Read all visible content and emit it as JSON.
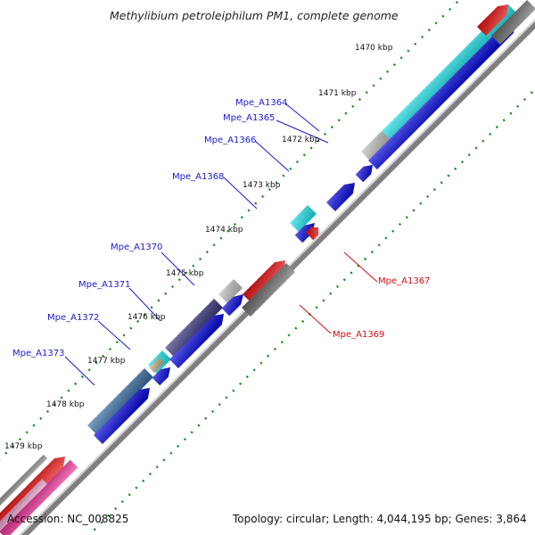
{
  "title": "Methylibium petroleiphilum PM1, complete genome",
  "footer": {
    "accession": "Accession: NC_008825",
    "stats": "Topology: circular; Length: 4,044,195 bp; Genes: 3,864"
  },
  "ticks": [
    "1470 kbp",
    "1471 kbp",
    "1472 kbp",
    "1473 kbp",
    "1474 kbp",
    "1475 kbp",
    "1476 kbp",
    "1477 kbp",
    "1478 kbp",
    "1479 kbp"
  ],
  "genes_forward": [
    {
      "id": "Mpe_A1364"
    },
    {
      "id": "Mpe_A1365"
    },
    {
      "id": "Mpe_A1366"
    },
    {
      "id": "Mpe_A1368"
    },
    {
      "id": "Mpe_A1370"
    },
    {
      "id": "Mpe_A1371"
    },
    {
      "id": "Mpe_A1372"
    },
    {
      "id": "Mpe_A1373"
    }
  ],
  "genes_reverse": [
    {
      "id": "Mpe_A1367"
    },
    {
      "id": "Mpe_A1369"
    }
  ],
  "colors": {
    "cds_blue": "#0000dd",
    "cog_cyan": "#22e6ee",
    "cog_grey": "#c4c4c4",
    "cog_navy": "#3c3880",
    "cog_steel": "#3b72a8",
    "cog_tan": "#c2b28a",
    "red": "#ee1111",
    "pink": "#ee3399",
    "backbone": "#808080",
    "tick_green": "#118811",
    "label_blue": "#1a1acc",
    "label_red": "#cc1111"
  }
}
